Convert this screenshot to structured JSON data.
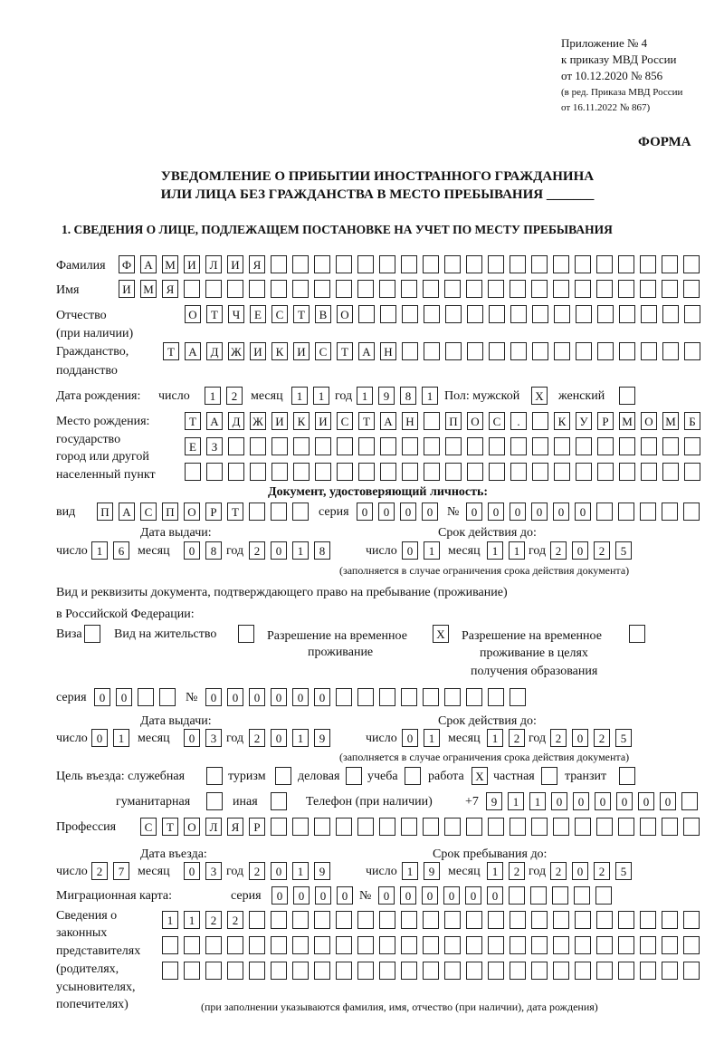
{
  "header": {
    "line1": "Приложение № 4",
    "line2": "к приказу МВД России",
    "line3": "от 10.12.2020 № 856",
    "line4": "(в ред. Приказа МВД России",
    "line5": "от 16.11.2022 № 867)",
    "form": "ФОРМА"
  },
  "title": {
    "line1": "УВЕДОМЛЕНИЕ О ПРИБЫТИИ ИНОСТРАННОГО ГРАЖДАНИНА",
    "line2": "ИЛИ ЛИЦА БЕЗ ГРАЖДАНСТВА В МЕСТО ПРЕБЫВАНИЯ _______"
  },
  "section1": "1. СВЕДЕНИЯ О ЛИЦЕ, ПОДЛЕЖАЩЕМ ПОСТАНОВКЕ НА УЧЕТ ПО МЕСТУ ПРЕБЫВАНИЯ",
  "labels": {
    "surname": "Фамилия",
    "name": "Имя",
    "patronymic1": "Отчество",
    "patronymic2": "(при наличии)",
    "citizenship1": "Гражданство,",
    "citizenship2": "подданство",
    "birth_date": "Дата рождения:",
    "day": "число",
    "month": "месяц",
    "year": "год",
    "sex": "Пол: мужской",
    "female": "женский",
    "birthplace1": "Место рождения:",
    "birthplace2": "государство",
    "birthplace3": "город или другой",
    "birthplace4": "населенный пункт",
    "id_doc": "Документ, удостоверяющий личность:",
    "kind": "вид",
    "series": "серия",
    "number": "№",
    "issue_date": "Дата выдачи:",
    "valid_until": "Срок действия до:",
    "valid_note": "(заполняется в случае ограничения срока действия документа)",
    "right_doc1": "Вид и реквизиты документа, подтверждающего право на пребывание (проживание)",
    "right_doc2": "в Российской Федерации:",
    "visa": "Виза",
    "residence": "Вид на жительство",
    "trp1": "Разрешение на временное",
    "trp2": "проживание",
    "trpe1": "Разрешение на временное",
    "trpe2": "проживание в целях",
    "trpe3": "получения образования",
    "purpose": "Цель въезда: служебная",
    "tourism": "туризм",
    "business": "деловая",
    "study": "учеба",
    "work": "работа",
    "private": "частная",
    "transit": "транзит",
    "humanitarian": "гуманитарная",
    "other": "иная",
    "phone": "Телефон (при наличии)",
    "phone_prefix": "+7",
    "profession": "Профессия",
    "entry_date": "Дата въезда:",
    "stay_until": "Срок пребывания до:",
    "migration_card": "Миграционная карта:",
    "reps1": "Сведения о",
    "reps2": "законных",
    "reps3": "представителях",
    "reps4": "(родителях,",
    "reps5": "усыновителях,",
    "reps6": "попечителях)",
    "reps_note": "(при заполнении указываются фамилия, имя, отчество (при наличии), дата рождения)"
  },
  "values": {
    "surname": "ФАМИЛИЯ",
    "name": "ИМЯ",
    "patronymic": "ОТЧЕСТВО",
    "citizenship": "ТАДЖИКИСТАН",
    "birth_day": "12",
    "birth_month": "11",
    "birth_year": "1981",
    "sex_male": "X",
    "sex_female": "",
    "birthplace_1": "ТАДЖИКИСТАН ПОС. КУРМОМБ",
    "birthplace_2": "ЕЗ",
    "birthplace_3": "",
    "doc_kind": "ПАСПОРТ",
    "doc_series": "0000",
    "doc_number": "000000",
    "doc_issue_day": "16",
    "doc_issue_month": "08",
    "doc_issue_year": "2018",
    "doc_valid_day": "01",
    "doc_valid_month": "11",
    "doc_valid_year": "2025",
    "visa": "",
    "residence": "",
    "trp": "X",
    "trpe": "",
    "right_series": "00",
    "right_number": "000000",
    "right_issue_day": "01",
    "right_issue_month": "03",
    "right_issue_year": "2019",
    "right_valid_day": "01",
    "right_valid_month": "12",
    "right_valid_year": "2025",
    "purpose_service": "",
    "purpose_tourism": "",
    "purpose_business": "",
    "purpose_study": "",
    "purpose_work": "X",
    "purpose_private": "",
    "purpose_transit": "",
    "purpose_humanitarian": "",
    "purpose_other": "",
    "phone": "911000000",
    "profession": "СТОЛЯР",
    "entry_day": "27",
    "entry_month": "03",
    "entry_year": "2019",
    "stay_day": "19",
    "stay_month": "12",
    "stay_year": "2025",
    "mc_series": "0000",
    "mc_number": "000000",
    "reps_1": "1122",
    "reps_2": "",
    "reps_3": ""
  }
}
